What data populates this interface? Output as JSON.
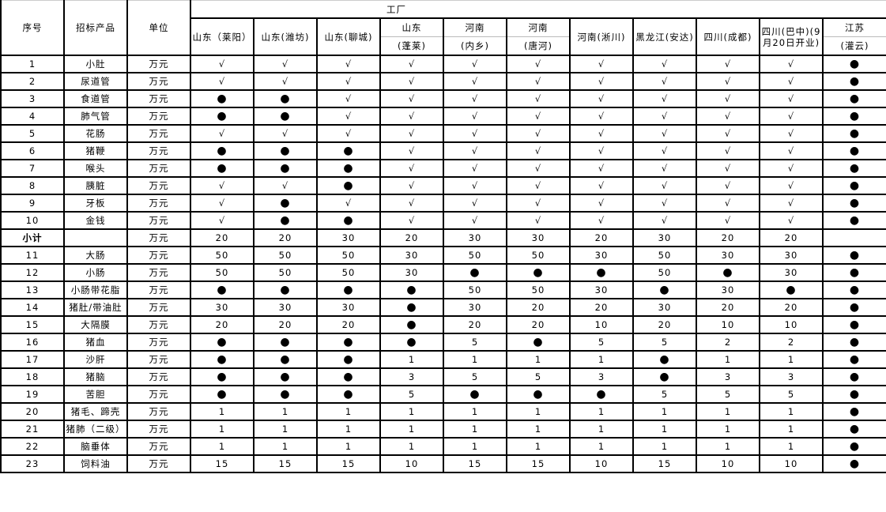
{
  "header": {
    "seq": "序号",
    "product": "招标产品",
    "unit": "单位",
    "factory_group": "工厂",
    "factories": [
      {
        "line1": "山东（莱阳）",
        "line2": ""
      },
      {
        "line1": "山东(潍坊)",
        "line2": ""
      },
      {
        "line1": "山东(聊城)",
        "line2": ""
      },
      {
        "line1": "山东",
        "line2": "(蓬莱)"
      },
      {
        "line1": "河南",
        "line2": "(内乡)"
      },
      {
        "line1": "河南",
        "line2": "(唐河)"
      },
      {
        "line1": "河南(淅川)",
        "line2": ""
      },
      {
        "line1": "黑龙江(安达)",
        "line2": ""
      },
      {
        "line1": "四川(成都)",
        "line2": ""
      },
      {
        "line1": "四川(巴中)(9月20日开业)",
        "line2": "",
        "wrap": true
      },
      {
        "line1": "江苏",
        "line2": "(灌云)"
      }
    ]
  },
  "legend_symbols": {
    "available": "√",
    "unavailable": "●"
  },
  "rows": [
    {
      "seq": "1",
      "product": "小肚",
      "unit": "万元",
      "values": [
        "√",
        "√",
        "√",
        "√",
        "√",
        "√",
        "√",
        "√",
        "√",
        "√",
        "●"
      ]
    },
    {
      "seq": "2",
      "product": "尿道管",
      "unit": "万元",
      "values": [
        "√",
        "√",
        "√",
        "√",
        "√",
        "√",
        "√",
        "√",
        "√",
        "√",
        "●"
      ]
    },
    {
      "seq": "3",
      "product": "食道管",
      "unit": "万元",
      "values": [
        "●",
        "●",
        "√",
        "√",
        "√",
        "√",
        "√",
        "√",
        "√",
        "√",
        "●"
      ]
    },
    {
      "seq": "4",
      "product": "肺气管",
      "unit": "万元",
      "values": [
        "●",
        "●",
        "√",
        "√",
        "√",
        "√",
        "√",
        "√",
        "√",
        "√",
        "●"
      ]
    },
    {
      "seq": "5",
      "product": "花肠",
      "unit": "万元",
      "values": [
        "√",
        "√",
        "√",
        "√",
        "√",
        "√",
        "√",
        "√",
        "√",
        "√",
        "●"
      ]
    },
    {
      "seq": "6",
      "product": "猪鞭",
      "unit": "万元",
      "values": [
        "●",
        "●",
        "●",
        "√",
        "√",
        "√",
        "√",
        "√",
        "√",
        "√",
        "●"
      ]
    },
    {
      "seq": "7",
      "product": "喉头",
      "unit": "万元",
      "values": [
        "●",
        "●",
        "●",
        "√",
        "√",
        "√",
        "√",
        "√",
        "√",
        "√",
        "●"
      ]
    },
    {
      "seq": "8",
      "product": "胰脏",
      "unit": "万元",
      "values": [
        "√",
        "√",
        "●",
        "√",
        "√",
        "√",
        "√",
        "√",
        "√",
        "√",
        "●"
      ]
    },
    {
      "seq": "9",
      "product": "牙板",
      "unit": "万元",
      "values": [
        "√",
        "●",
        "√",
        "√",
        "√",
        "√",
        "√",
        "√",
        "√",
        "√",
        "●"
      ]
    },
    {
      "seq": "10",
      "product": "金钱",
      "unit": "万元",
      "values": [
        "√",
        "●",
        "●",
        "√",
        "√",
        "√",
        "√",
        "√",
        "√",
        "√",
        "●"
      ]
    },
    {
      "seq": "小计",
      "product": "",
      "unit": "万元",
      "subtotal": true,
      "values": [
        "20",
        "20",
        "30",
        "20",
        "30",
        "30",
        "20",
        "30",
        "20",
        "20",
        ""
      ]
    },
    {
      "seq": "11",
      "product": "大肠",
      "unit": "万元",
      "values": [
        "50",
        "50",
        "50",
        "30",
        "50",
        "50",
        "30",
        "50",
        "30",
        "30",
        "●"
      ]
    },
    {
      "seq": "12",
      "product": "小肠",
      "unit": "万元",
      "values": [
        "50",
        "50",
        "50",
        "30",
        "●",
        "●",
        "●",
        "50",
        "●",
        "30",
        "●"
      ]
    },
    {
      "seq": "13",
      "product": "小肠带花脂",
      "unit": "万元",
      "values": [
        "●",
        "●",
        "●",
        "●",
        "50",
        "50",
        "30",
        "●",
        "30",
        "●",
        "●"
      ]
    },
    {
      "seq": "14",
      "product": "猪肚/带油肚",
      "unit": "万元",
      "values": [
        "30",
        "30",
        "30",
        "●",
        "30",
        "20",
        "20",
        "30",
        "20",
        "20",
        "●"
      ]
    },
    {
      "seq": "15",
      "product": "大隔膜",
      "unit": "万元",
      "values": [
        "20",
        "20",
        "20",
        "●",
        "20",
        "20",
        "10",
        "20",
        "10",
        "10",
        "●"
      ]
    },
    {
      "seq": "16",
      "product": "猪血",
      "unit": "万元",
      "values": [
        "●",
        "●",
        "●",
        "●",
        "5",
        "●",
        "5",
        "5",
        "2",
        "2",
        "●"
      ]
    },
    {
      "seq": "17",
      "product": "沙肝",
      "unit": "万元",
      "values": [
        "●",
        "●",
        "●",
        "1",
        "1",
        "1",
        "1",
        "●",
        "1",
        "1",
        "●"
      ]
    },
    {
      "seq": "18",
      "product": "猪脑",
      "unit": "万元",
      "values": [
        "●",
        "●",
        "●",
        "3",
        "5",
        "5",
        "3",
        "●",
        "3",
        "3",
        "●"
      ]
    },
    {
      "seq": "19",
      "product": "苦胆",
      "unit": "万元",
      "values": [
        "●",
        "●",
        "●",
        "5",
        "●",
        "●",
        "●",
        "5",
        "5",
        "5",
        "●"
      ]
    },
    {
      "seq": "20",
      "product": "猪毛、蹄壳",
      "unit": "万元",
      "values": [
        "1",
        "1",
        "1",
        "1",
        "1",
        "1",
        "1",
        "1",
        "1",
        "1",
        "●"
      ]
    },
    {
      "seq": "21",
      "product": "猪肺（二级）",
      "unit": "万元",
      "values": [
        "1",
        "1",
        "1",
        "1",
        "1",
        "1",
        "1",
        "1",
        "1",
        "1",
        "●"
      ]
    },
    {
      "seq": "22",
      "product": "脑垂体",
      "unit": "万元",
      "values": [
        "1",
        "1",
        "1",
        "1",
        "1",
        "1",
        "1",
        "1",
        "1",
        "1",
        "●"
      ]
    },
    {
      "seq": "23",
      "product": "饲料油",
      "unit": "万元",
      "values": [
        "15",
        "15",
        "15",
        "10",
        "15",
        "15",
        "10",
        "15",
        "10",
        "10",
        "●"
      ]
    }
  ]
}
